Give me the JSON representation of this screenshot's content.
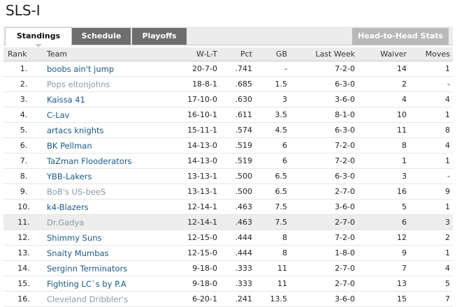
{
  "league_title": "SLS-I",
  "tabs": [
    {
      "label": "Standings"
    },
    {
      "label": "Schedule"
    },
    {
      "label": "Playoffs"
    },
    {
      "label": "Head-to-Head Stats"
    }
  ],
  "columns": {
    "rank": "Rank",
    "team": "Team",
    "wlt": "W-L-T",
    "pct": "Pct",
    "gb": "GB",
    "last_week": "Last Week",
    "waiver": "Waiver",
    "moves": "Moves"
  },
  "rows": [
    {
      "rank": "1.",
      "team": "boobs ain't jump",
      "wlt": "20-7-0",
      "pct": ".741",
      "gb": "-",
      "last_week": "7-2-0",
      "waiver": "14",
      "moves": "1"
    },
    {
      "rank": "2.",
      "team": "Pops eltonjohns",
      "wlt": "18-8-1",
      "pct": ".685",
      "gb": "1.5",
      "last_week": "6-3-0",
      "waiver": "2",
      "moves": "-"
    },
    {
      "rank": "3.",
      "team": "Kaissa 41",
      "wlt": "17-10-0",
      "pct": ".630",
      "gb": "3",
      "last_week": "3-6-0",
      "waiver": "4",
      "moves": "4"
    },
    {
      "rank": "4.",
      "team": "C-Lav",
      "wlt": "16-10-1",
      "pct": ".611",
      "gb": "3.5",
      "last_week": "8-1-0",
      "waiver": "10",
      "moves": "1"
    },
    {
      "rank": "5.",
      "team": "artacs knights",
      "wlt": "15-11-1",
      "pct": ".574",
      "gb": "4.5",
      "last_week": "6-3-0",
      "waiver": "11",
      "moves": "8"
    },
    {
      "rank": "6.",
      "team": "BK Pellman",
      "wlt": "14-13-0",
      "pct": ".519",
      "gb": "6",
      "last_week": "7-2-0",
      "waiver": "8",
      "moves": "4"
    },
    {
      "rank": "7.",
      "team": "TaZman Flooderators",
      "wlt": "14-13-0",
      "pct": ".519",
      "gb": "6",
      "last_week": "7-2-0",
      "waiver": "1",
      "moves": "1"
    },
    {
      "rank": "8.",
      "team": "YBB-Lakers",
      "wlt": "13-13-1",
      "pct": ".500",
      "gb": "6.5",
      "last_week": "6-3-0",
      "waiver": "3",
      "moves": "-"
    },
    {
      "rank": "9.",
      "team": "BoB's US-beeS",
      "wlt": "13-13-1",
      "pct": ".500",
      "gb": "6.5",
      "last_week": "2-7-0",
      "waiver": "16",
      "moves": "9"
    },
    {
      "rank": "10.",
      "team": "k4-Blazers",
      "wlt": "12-14-1",
      "pct": ".463",
      "gb": "7.5",
      "last_week": "3-6-0",
      "waiver": "5",
      "moves": "1"
    },
    {
      "rank": "11.",
      "team": "Dr.Gadya",
      "wlt": "12-14-1",
      "pct": ".463",
      "gb": "7.5",
      "last_week": "2-7-0",
      "waiver": "6",
      "moves": "3"
    },
    {
      "rank": "12.",
      "team": "Shimmy Suns",
      "wlt": "12-15-0",
      "pct": ".444",
      "gb": "8",
      "last_week": "7-2-0",
      "waiver": "12",
      "moves": "2"
    },
    {
      "rank": "13.",
      "team": "Snaity Mumbas",
      "wlt": "12-15-0",
      "pct": ".444",
      "gb": "8",
      "last_week": "1-8-0",
      "waiver": "9",
      "moves": "1"
    },
    {
      "rank": "14.",
      "team": "Serginn Terminators",
      "wlt": "9-18-0",
      "pct": ".333",
      "gb": "11",
      "last_week": "2-7-0",
      "waiver": "7",
      "moves": "4"
    },
    {
      "rank": "15.",
      "team": "Fighting LC`s by P.A",
      "wlt": "9-18-0",
      "pct": ".333",
      "gb": "11",
      "last_week": "2-7-0",
      "waiver": "13",
      "moves": "5"
    },
    {
      "rank": "16.",
      "team": "Cleveland Dribbler's",
      "wlt": "6-20-1",
      "pct": ".241",
      "gb": "13.5",
      "last_week": "3-6-0",
      "waiver": "15",
      "moves": "7"
    }
  ],
  "colors": {
    "team_link": "#1a5a86",
    "team_link_muted": "#8a9aa6",
    "tab_dark": "#6e6e6e",
    "tab_light": "#b9b9b9",
    "header_bg": "#ececec",
    "row_highlight": "#ededed"
  }
}
